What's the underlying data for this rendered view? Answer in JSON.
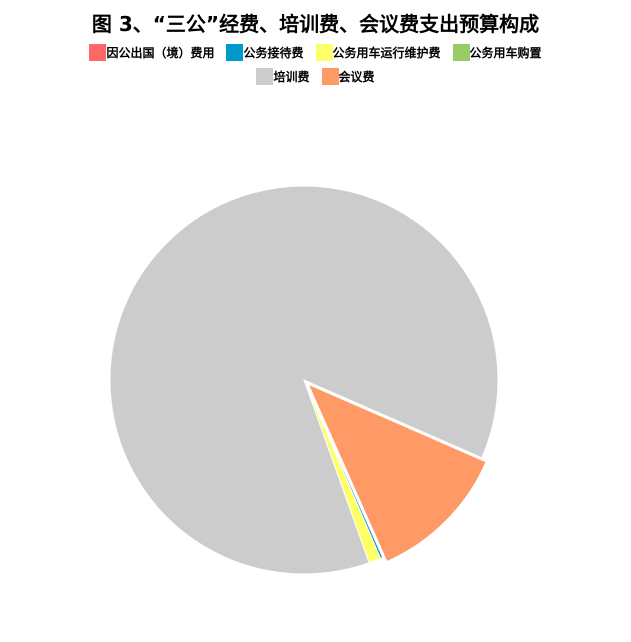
{
  "chart_data": {
    "type": "pie",
    "title": "图 3、“三公”经费、培训费、会议费支出预算构成",
    "legend_position": "top",
    "categories": [
      "因公出国（境）费用",
      "公务接待费",
      "公务用车运行维护费",
      "公务用车购置",
      "培训费",
      "会议费"
    ],
    "values_percent": [
      0,
      0.2,
      1.0,
      0,
      87.0,
      11.8
    ],
    "colors": [
      "#ff6666",
      "#0099cc",
      "#ffff66",
      "#99cc66",
      "#cccccc",
      "#ff9966"
    ]
  }
}
